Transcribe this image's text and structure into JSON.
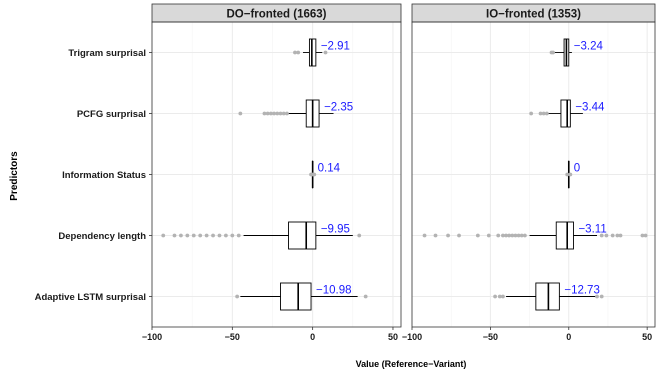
{
  "chart_data": {
    "type": "boxplot",
    "xlabel": "Value (Reference−Variant)",
    "ylabel": "Predictors",
    "xlim": [
      -100,
      55
    ],
    "xticks": [
      -100,
      -50,
      0,
      50
    ],
    "xtick_labels": [
      "−100",
      "−50",
      "0",
      "50"
    ],
    "categories": [
      "Trigram surprisal",
      "PCFG surprisal",
      "Information Status",
      "Dependency length",
      "Adaptive LSTM surprisal"
    ],
    "grid": true,
    "colors": {
      "box": "#000000",
      "outlier": "#b3b3b3",
      "annotation": "#1a1aff",
      "strip": "#d9d9d9",
      "grid": "#ebebeb"
    },
    "panels": [
      {
        "title": "DO−fronted (1663)",
        "boxes": [
          {
            "category": "Trigram surprisal",
            "whisker_low": -6,
            "q1": -2,
            "median": -0.5,
            "q3": 2,
            "whisker_high": 6,
            "mean_label": "−2.91",
            "outliers": [
              -11,
              -9,
              8
            ]
          },
          {
            "category": "PCFG surprisal",
            "whisker_low": -15,
            "q1": -4,
            "median": 0,
            "q3": 4,
            "whisker_high": 13,
            "mean_label": "−2.35",
            "outliers": [
              -45,
              -30,
              -28,
              -26,
              -24,
              -22,
              -20,
              -18,
              -16
            ]
          },
          {
            "category": "Information Status",
            "whisker_low": 0,
            "q1": 0,
            "median": 0,
            "q3": 0,
            "whisker_high": 0,
            "mean_label": "0.14",
            "outliers": [
              -1,
              0,
              1
            ]
          },
          {
            "category": "Dependency length",
            "whisker_low": -43,
            "q1": -15,
            "median": -4,
            "q3": 2,
            "whisker_high": 25,
            "mean_label": "−9.95",
            "outliers": [
              -93,
              -86,
              -82,
              -78,
              -74,
              -70,
              -66,
              -62,
              -58,
              -54,
              -50,
              -46,
              29
            ]
          },
          {
            "category": "Adaptive LSTM surprisal",
            "whisker_low": -45,
            "q1": -20,
            "median": -9,
            "q3": -1,
            "whisker_high": 28,
            "mean_label": "−10.98",
            "outliers": [
              -47,
              33
            ]
          }
        ]
      },
      {
        "title": "IO−fronted (1353)",
        "boxes": [
          {
            "category": "Trigram surprisal",
            "whisker_low": -10,
            "q1": -3,
            "median": -1.5,
            "q3": 0,
            "whisker_high": 2,
            "mean_label": "−3.24",
            "outliers": [
              -11,
              -10
            ]
          },
          {
            "category": "PCFG surprisal",
            "whisker_low": -15,
            "q1": -5,
            "median": -1,
            "q3": 1,
            "whisker_high": 9,
            "mean_label": "−3.44",
            "outliers": [
              -24,
              -18,
              -16,
              -14
            ]
          },
          {
            "category": "Information Status",
            "whisker_low": 0,
            "q1": 0,
            "median": 0,
            "q3": 0,
            "whisker_high": 0,
            "mean_label": "0",
            "outliers": [
              -1,
              1
            ]
          },
          {
            "category": "Dependency length",
            "whisker_low": -25,
            "q1": -8,
            "median": -1,
            "q3": 3,
            "whisker_high": 18,
            "mean_label": "−3.11",
            "outliers": [
              -92,
              -85,
              -77,
              -70,
              -58,
              -51,
              -45,
              -42,
              -40,
              -38,
              -36,
              -34,
              -32,
              -30,
              -28,
              21,
              24,
              28,
              31,
              33,
              47,
              49
            ]
          },
          {
            "category": "Adaptive LSTM surprisal",
            "whisker_low": -40,
            "q1": -21,
            "median": -13,
            "q3": -6,
            "whisker_high": 17,
            "mean_label": "−12.73",
            "outliers": [
              -47,
              -44,
              -42,
              18,
              21
            ]
          }
        ]
      }
    ]
  }
}
